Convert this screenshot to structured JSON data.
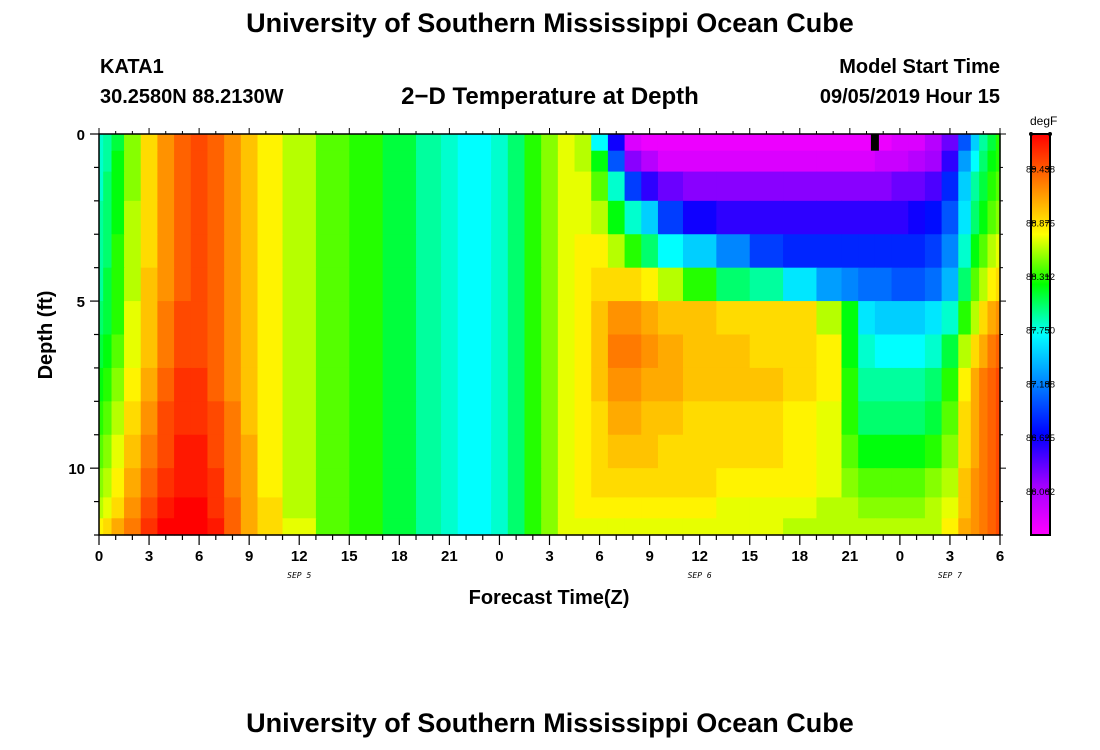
{
  "header": {
    "title": "University of Southern Mississippi Ocean Cube",
    "station": "KATA1",
    "coords": "30.2580N 88.2130W",
    "chart_title": "2−D Temperature at Depth",
    "model_label": "Model Start Time",
    "model_time": "09/05/2019 Hour 15"
  },
  "footer": {
    "title": "University of Southern Mississippi Ocean Cube"
  },
  "chart_data": {
    "type": "heatmap",
    "title": "2−D Temperature at Depth",
    "xlabel": "Forecast Time(Z)",
    "ylabel": "Depth (ft)",
    "x_tick_labels": [
      "0",
      "3",
      "6",
      "9",
      "12",
      "15",
      "18",
      "21",
      "0",
      "3",
      "6",
      "9",
      "12",
      "15",
      "18",
      "21",
      "0",
      "3",
      "6"
    ],
    "date_labels": [
      {
        "label": "SEP 5",
        "hour": 12
      },
      {
        "label": "SEP 6",
        "hour": 36
      },
      {
        "label": "SEP 7",
        "hour": 51
      }
    ],
    "x_range_hours": [
      0,
      54
    ],
    "y_ticks": [
      0,
      5,
      10
    ],
    "y_range_ft": [
      0,
      12
    ],
    "colorbar": {
      "unit": "degF",
      "labels": [
        "89.438",
        "88.875",
        "88.312",
        "87.750",
        "87.188",
        "86.625",
        "86.062"
      ],
      "range": [
        85.6,
        89.8
      ]
    },
    "colors": {
      "scale": [
        "#ff00ff",
        "#a000ff",
        "#0000ff",
        "#0080ff",
        "#00ffff",
        "#00ff00",
        "#ffff00",
        "#ff8000",
        "#ff0000"
      ]
    },
    "depth_layers_ft": [
      0.25,
      0.75,
      1.5,
      2.5,
      3.5,
      4.5,
      5.5,
      6.5,
      7.5,
      8.5,
      9.5,
      10.5,
      11.25,
      11.75
    ],
    "hours": [
      0,
      0.5,
      1,
      2,
      3,
      4,
      5,
      6,
      7,
      8,
      9,
      10,
      12,
      14,
      16,
      18,
      20,
      21,
      22,
      23,
      24,
      25,
      26,
      27,
      28,
      29,
      30,
      31,
      32,
      33,
      34,
      36,
      38,
      40,
      42,
      44,
      45,
      46,
      47,
      48,
      49,
      50,
      51,
      52,
      52.5,
      53,
      53.5,
      54
    ],
    "temperature_series_degF": [
      {
        "depth": 0.25,
        "values": [
          87.8,
          87.9,
          88.1,
          88.5,
          88.9,
          89.2,
          89.4,
          89.5,
          89.4,
          89.2,
          89.0,
          88.8,
          88.6,
          88.4,
          88.3,
          88.1,
          87.9,
          87.8,
          87.7,
          87.7,
          87.8,
          88.0,
          88.3,
          88.5,
          88.7,
          88.6,
          87.7,
          86.6,
          85.8,
          85.7,
          85.7,
          85.7,
          85.7,
          85.7,
          85.7,
          85.7,
          85.7,
          85.7,
          85.7,
          85.8,
          85.8,
          86.0,
          86.3,
          87.0,
          87.5,
          87.9,
          88.1,
          88.3
        ]
      },
      {
        "depth": 0.75,
        "values": [
          87.8,
          87.9,
          88.2,
          88.5,
          88.9,
          89.2,
          89.4,
          89.5,
          89.4,
          89.2,
          89.0,
          88.8,
          88.6,
          88.4,
          88.3,
          88.1,
          87.9,
          87.8,
          87.7,
          87.7,
          87.8,
          88.0,
          88.3,
          88.5,
          88.7,
          88.6,
          88.2,
          87.0,
          86.2,
          86.0,
          85.8,
          85.8,
          85.8,
          85.8,
          85.8,
          85.8,
          85.8,
          85.8,
          85.9,
          85.9,
          86.0,
          86.1,
          86.5,
          87.3,
          87.7,
          88.0,
          88.2,
          88.3
        ]
      },
      {
        "depth": 1.5,
        "values": [
          87.8,
          88.0,
          88.2,
          88.5,
          88.9,
          89.2,
          89.4,
          89.5,
          89.4,
          89.2,
          89.0,
          88.8,
          88.6,
          88.4,
          88.3,
          88.1,
          87.9,
          87.8,
          87.7,
          87.7,
          87.8,
          88.0,
          88.3,
          88.5,
          88.7,
          88.7,
          88.4,
          87.8,
          86.9,
          86.5,
          86.3,
          86.2,
          86.2,
          86.2,
          86.2,
          86.2,
          86.2,
          86.2,
          86.2,
          86.3,
          86.3,
          86.4,
          86.8,
          87.5,
          87.9,
          88.1,
          88.3,
          88.4
        ]
      },
      {
        "depth": 2.5,
        "values": [
          87.9,
          88.0,
          88.2,
          88.6,
          88.9,
          89.2,
          89.4,
          89.5,
          89.4,
          89.2,
          89.0,
          88.8,
          88.6,
          88.4,
          88.3,
          88.1,
          87.9,
          87.8,
          87.7,
          87.7,
          87.8,
          88.0,
          88.3,
          88.5,
          88.7,
          88.7,
          88.6,
          88.2,
          87.8,
          87.5,
          86.9,
          86.6,
          86.5,
          86.5,
          86.5,
          86.5,
          86.5,
          86.5,
          86.5,
          86.5,
          86.6,
          86.7,
          87.0,
          87.6,
          88.0,
          88.2,
          88.4,
          88.5
        ]
      },
      {
        "depth": 3.5,
        "values": [
          87.9,
          88.0,
          88.3,
          88.6,
          88.9,
          89.2,
          89.4,
          89.5,
          89.4,
          89.2,
          89.0,
          88.8,
          88.6,
          88.4,
          88.3,
          88.1,
          87.9,
          87.8,
          87.7,
          87.7,
          87.8,
          88.0,
          88.3,
          88.5,
          88.7,
          88.8,
          88.8,
          88.6,
          88.3,
          88.0,
          87.7,
          87.5,
          87.2,
          86.9,
          86.8,
          86.8,
          86.8,
          86.8,
          86.8,
          86.8,
          86.8,
          86.9,
          87.2,
          87.8,
          88.2,
          88.4,
          88.6,
          88.7
        ]
      },
      {
        "depth": 4.5,
        "values": [
          87.9,
          88.1,
          88.3,
          88.6,
          89.0,
          89.2,
          89.4,
          89.5,
          89.4,
          89.2,
          89.0,
          88.8,
          88.6,
          88.4,
          88.3,
          88.1,
          87.9,
          87.8,
          87.7,
          87.7,
          87.8,
          88.0,
          88.3,
          88.5,
          88.7,
          88.8,
          88.9,
          88.9,
          88.9,
          88.8,
          88.6,
          88.3,
          88.0,
          87.9,
          87.6,
          87.3,
          87.2,
          87.1,
          87.1,
          87.0,
          87.0,
          87.1,
          87.4,
          88.0,
          88.4,
          88.6,
          88.8,
          88.9
        ]
      },
      {
        "depth": 5.5,
        "values": [
          88.0,
          88.1,
          88.3,
          88.7,
          89.0,
          89.3,
          89.5,
          89.5,
          89.4,
          89.2,
          89.0,
          88.8,
          88.6,
          88.4,
          88.3,
          88.1,
          87.9,
          87.8,
          87.7,
          87.7,
          87.8,
          88.0,
          88.3,
          88.5,
          88.7,
          88.8,
          89.0,
          89.2,
          89.2,
          89.1,
          89.0,
          89.0,
          88.9,
          88.9,
          88.9,
          88.6,
          88.2,
          87.6,
          87.5,
          87.5,
          87.5,
          87.6,
          87.8,
          88.3,
          88.6,
          88.9,
          89.1,
          89.2
        ]
      },
      {
        "depth": 6.5,
        "values": [
          88.1,
          88.2,
          88.4,
          88.7,
          89.0,
          89.3,
          89.5,
          89.5,
          89.4,
          89.2,
          89.0,
          88.8,
          88.6,
          88.4,
          88.3,
          88.1,
          87.9,
          87.8,
          87.7,
          87.7,
          87.8,
          88.0,
          88.3,
          88.5,
          88.7,
          88.8,
          89.0,
          89.3,
          89.3,
          89.2,
          89.1,
          89.0,
          89.0,
          88.9,
          88.9,
          88.8,
          88.2,
          87.8,
          87.7,
          87.7,
          87.7,
          87.8,
          88.1,
          88.6,
          88.9,
          89.1,
          89.3,
          89.4
        ]
      },
      {
        "depth": 7.5,
        "values": [
          88.2,
          88.3,
          88.5,
          88.8,
          89.1,
          89.4,
          89.6,
          89.6,
          89.4,
          89.2,
          89.0,
          88.8,
          88.6,
          88.4,
          88.3,
          88.1,
          87.9,
          87.8,
          87.7,
          87.7,
          87.8,
          88.0,
          88.3,
          88.5,
          88.7,
          88.8,
          89.0,
          89.2,
          89.2,
          89.1,
          89.1,
          89.0,
          89.0,
          89.0,
          88.9,
          88.8,
          88.3,
          87.9,
          87.9,
          87.9,
          87.9,
          88.0,
          88.3,
          88.8,
          89.1,
          89.3,
          89.4,
          89.5
        ]
      },
      {
        "depth": 8.5,
        "values": [
          88.3,
          88.4,
          88.6,
          88.9,
          89.2,
          89.5,
          89.6,
          89.6,
          89.5,
          89.3,
          89.0,
          88.8,
          88.6,
          88.4,
          88.3,
          88.1,
          87.9,
          87.8,
          87.7,
          87.7,
          87.8,
          88.0,
          88.3,
          88.5,
          88.7,
          88.8,
          88.9,
          89.1,
          89.1,
          89.0,
          89.0,
          88.9,
          88.9,
          88.9,
          88.8,
          88.7,
          88.3,
          88.0,
          88.0,
          88.0,
          88.0,
          88.1,
          88.4,
          88.9,
          89.1,
          89.3,
          89.4,
          89.5
        ]
      },
      {
        "depth": 9.5,
        "values": [
          88.4,
          88.5,
          88.7,
          89.0,
          89.3,
          89.5,
          89.7,
          89.7,
          89.5,
          89.3,
          89.1,
          88.8,
          88.6,
          88.4,
          88.3,
          88.1,
          87.9,
          87.8,
          87.7,
          87.7,
          87.8,
          88.0,
          88.3,
          88.5,
          88.7,
          88.8,
          88.9,
          89.0,
          89.0,
          89.0,
          88.9,
          88.9,
          88.9,
          88.9,
          88.8,
          88.7,
          88.4,
          88.2,
          88.2,
          88.2,
          88.2,
          88.3,
          88.5,
          88.9,
          89.1,
          89.3,
          89.4,
          89.5
        ]
      },
      {
        "depth": 10.5,
        "values": [
          88.5,
          88.6,
          88.8,
          89.1,
          89.4,
          89.6,
          89.7,
          89.7,
          89.6,
          89.3,
          89.1,
          88.8,
          88.6,
          88.4,
          88.3,
          88.1,
          87.9,
          87.8,
          87.7,
          87.7,
          87.8,
          88.0,
          88.3,
          88.5,
          88.7,
          88.8,
          88.9,
          88.9,
          88.9,
          88.9,
          88.9,
          88.9,
          88.8,
          88.8,
          88.8,
          88.7,
          88.5,
          88.4,
          88.4,
          88.4,
          88.4,
          88.5,
          88.6,
          89.0,
          89.2,
          89.3,
          89.4,
          89.5
        ]
      },
      {
        "depth": 11.25,
        "values": [
          88.6,
          88.7,
          88.9,
          89.2,
          89.5,
          89.7,
          89.8,
          89.8,
          89.6,
          89.4,
          89.1,
          88.9,
          88.6,
          88.4,
          88.3,
          88.1,
          87.9,
          87.8,
          87.7,
          87.7,
          87.8,
          88.0,
          88.3,
          88.5,
          88.7,
          88.8,
          88.8,
          88.8,
          88.8,
          88.8,
          88.8,
          88.8,
          88.7,
          88.7,
          88.7,
          88.6,
          88.6,
          88.5,
          88.5,
          88.5,
          88.5,
          88.6,
          88.7,
          89.0,
          89.2,
          89.3,
          89.4,
          89.5
        ]
      },
      {
        "depth": 11.75,
        "values": [
          88.8,
          88.9,
          89.1,
          89.3,
          89.6,
          89.8,
          89.8,
          89.8,
          89.7,
          89.4,
          89.1,
          88.9,
          88.7,
          88.4,
          88.3,
          88.1,
          87.9,
          87.8,
          87.7,
          87.7,
          87.8,
          88.0,
          88.3,
          88.5,
          88.7,
          88.7,
          88.7,
          88.7,
          88.7,
          88.7,
          88.7,
          88.7,
          88.7,
          88.7,
          88.6,
          88.6,
          88.6,
          88.6,
          88.6,
          88.6,
          88.6,
          88.6,
          88.8,
          89.1,
          89.2,
          89.3,
          89.4,
          89.5
        ]
      }
    ],
    "marker": {
      "hour": 46.5,
      "depth_range_ft": [
        0,
        0.5
      ]
    }
  }
}
